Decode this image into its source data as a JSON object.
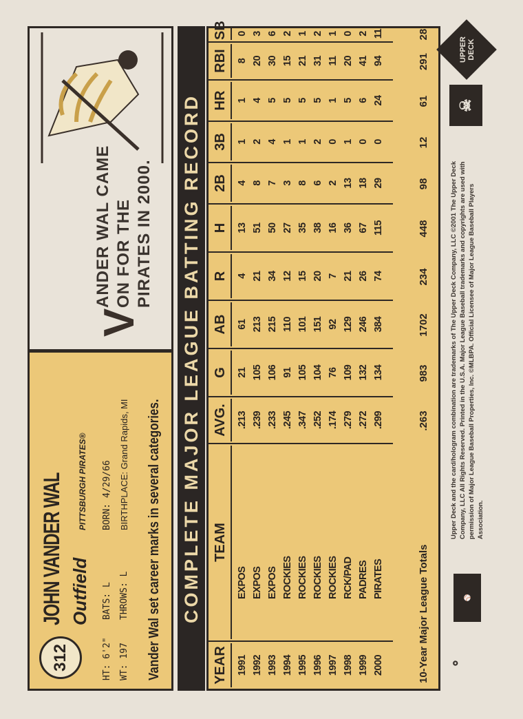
{
  "card": {
    "number": "312",
    "name": "JOHN VANDER WAL",
    "position": "Outfield",
    "team": "PITTSBURGH PIRATES®",
    "ht": "HT: 6'2\"",
    "wt": "WT: 197",
    "bats": "BATS: L",
    "throws": "THROWS: L",
    "born": "BORN: 4/29/66",
    "birthplace": "BIRTHPLACE: Grand Rapids, MI",
    "blurb": "Vander Wal set career marks in several categories.",
    "cartoon_caption": [
      "ANDER WAL CAME",
      "ON FOR THE",
      "PIRATES IN 2000."
    ],
    "cartoon_initial": "V"
  },
  "stats": {
    "title": "COMPLETE MAJOR LEAGUE BATTING RECORD",
    "headers": [
      "YEAR",
      "TEAM",
      "AVG.",
      "G",
      "AB",
      "R",
      "H",
      "2B",
      "3B",
      "HR",
      "RBI",
      "SB"
    ],
    "rows": [
      [
        "1991",
        "EXPOS",
        ".213",
        "21",
        "61",
        "4",
        "13",
        "4",
        "1",
        "1",
        "8",
        "0"
      ],
      [
        "1992",
        "EXPOS",
        ".239",
        "105",
        "213",
        "21",
        "51",
        "8",
        "2",
        "4",
        "20",
        "3"
      ],
      [
        "1993",
        "EXPOS",
        ".233",
        "106",
        "215",
        "34",
        "50",
        "7",
        "4",
        "5",
        "30",
        "6"
      ],
      [
        "1994",
        "ROCKIES",
        ".245",
        "91",
        "110",
        "12",
        "27",
        "3",
        "1",
        "5",
        "15",
        "2"
      ],
      [
        "1995",
        "ROCKIES",
        ".347",
        "105",
        "101",
        "15",
        "35",
        "8",
        "1",
        "5",
        "21",
        "1"
      ],
      [
        "1996",
        "ROCKIES",
        ".252",
        "104",
        "151",
        "20",
        "38",
        "6",
        "2",
        "5",
        "31",
        "2"
      ],
      [
        "1997",
        "ROCKIES",
        ".174",
        "76",
        "92",
        "7",
        "16",
        "2",
        "0",
        "1",
        "11",
        "1"
      ],
      [
        "1998",
        "RCK/PAD",
        ".279",
        "109",
        "129",
        "21",
        "36",
        "13",
        "1",
        "5",
        "20",
        "0"
      ],
      [
        "1999",
        "PADRES",
        ".272",
        "132",
        "246",
        "26",
        "67",
        "18",
        "0",
        "6",
        "41",
        "2"
      ],
      [
        "2000",
        "PIRATES",
        ".299",
        "134",
        "384",
        "74",
        "115",
        "29",
        "0",
        "24",
        "94",
        "11"
      ]
    ],
    "totals_label": "10-Year Major League Totals",
    "totals": [
      ".263",
      "983",
      "1702",
      "234",
      "448",
      "98",
      "12",
      "61",
      "291",
      "28"
    ]
  },
  "footer": {
    "legal": "Upper Deck and the card/hologram combination are trademarks of The Upper Deck Company, LLC ©2001 The Upper Deck Company, LLC All Rights Reserved. Printed in the U.S.A. Major League Baseball trademarks and copyrights are used with permission of Major League Baseball Properties, Inc. ©MLBPA. Official Licensee of Major League Baseball Players Association.",
    "brand": "UPPER DECK",
    "players_logo": "PLAYERS CHOICE",
    "mlb_logo": "MAJOR LEAGUE BASEBALL"
  },
  "colors": {
    "card": "#ecc878",
    "ink": "#2e2824",
    "stock": "#e8e2d8"
  }
}
